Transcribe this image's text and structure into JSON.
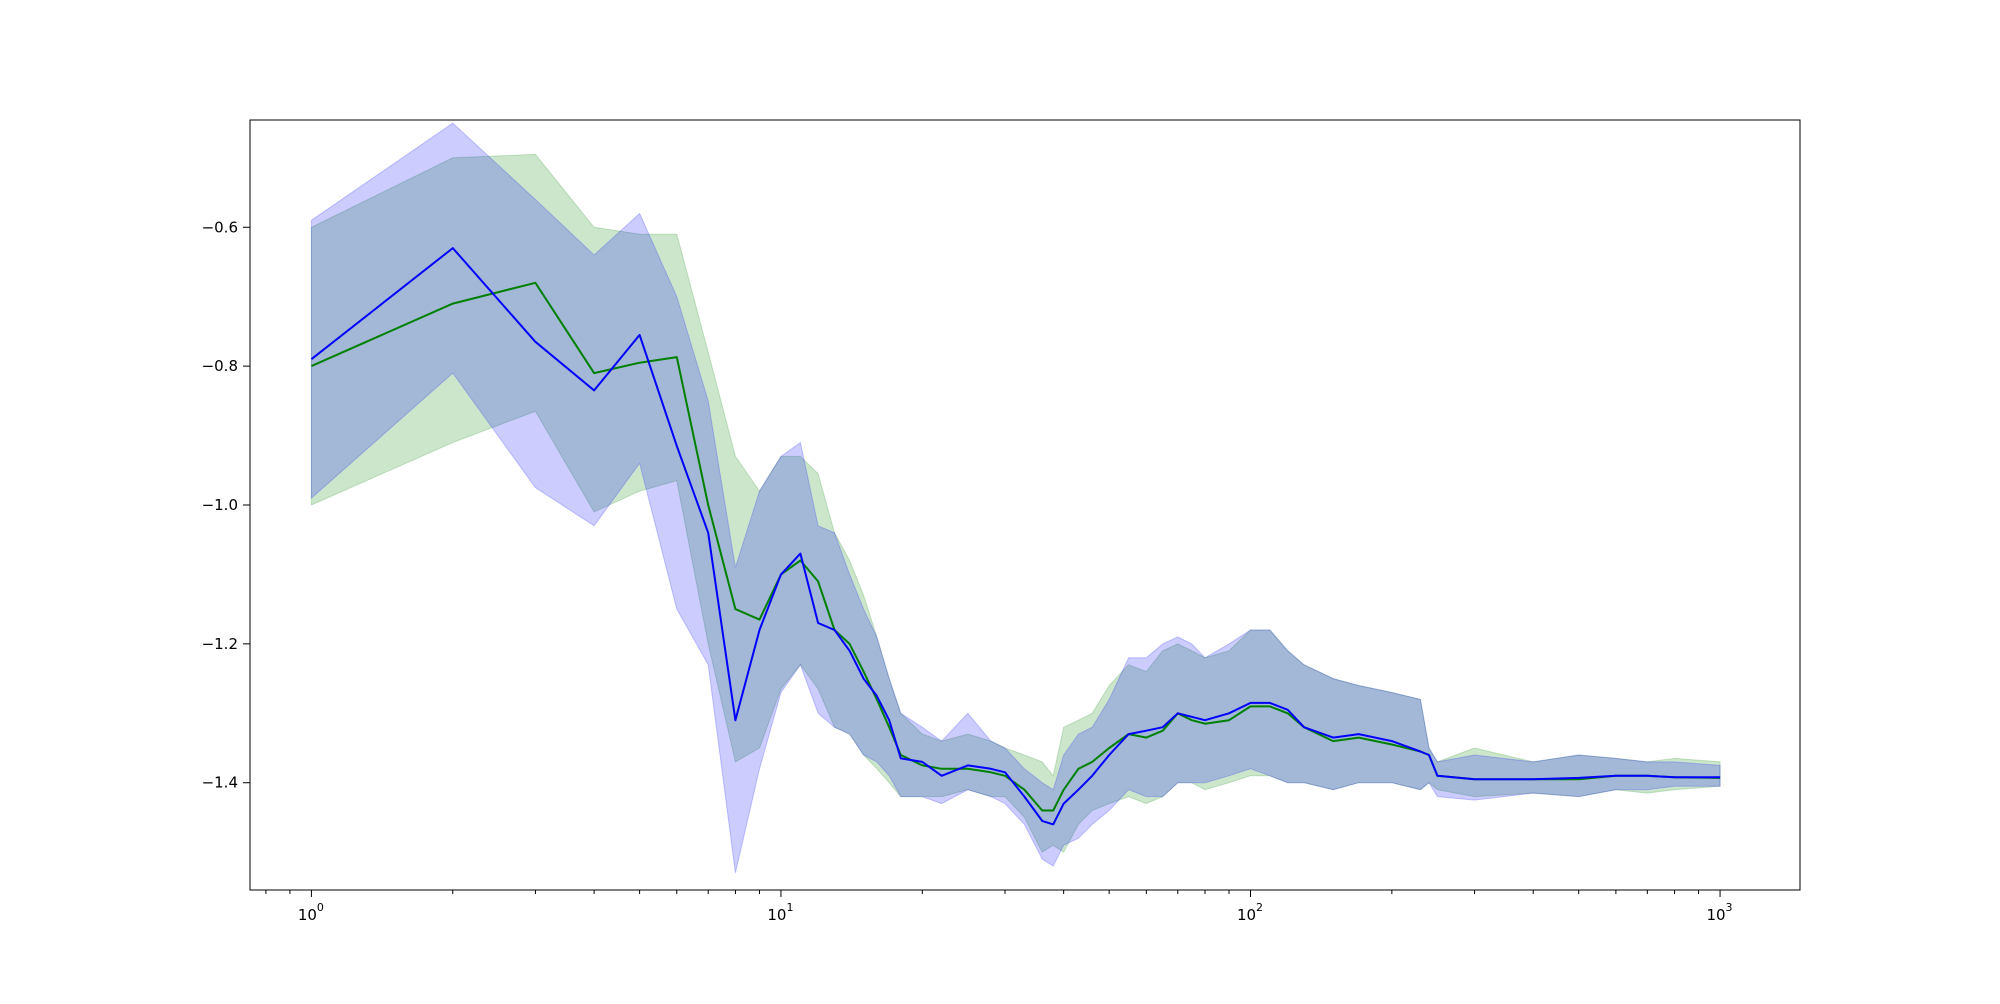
{
  "chart_data": {
    "type": "line",
    "title": "",
    "xlabel": "",
    "ylabel": "",
    "xscale": "log",
    "xlim": [
      0.74,
      1480
    ],
    "ylim": [
      -1.5545,
      -0.4455
    ],
    "grid": false,
    "legend": "none",
    "x_ticks": [
      {
        "value": 1,
        "base": "10",
        "exp": "0"
      },
      {
        "value": 10,
        "base": "10",
        "exp": "1"
      },
      {
        "value": 100,
        "base": "10",
        "exp": "2"
      },
      {
        "value": 1000,
        "base": "10",
        "exp": "3"
      }
    ],
    "y_ticks": [
      {
        "value": -0.6,
        "label": "−0.6"
      },
      {
        "value": -0.8,
        "label": "−0.8"
      },
      {
        "value": -1.0,
        "label": "−1.0"
      },
      {
        "value": -1.2,
        "label": "−1.2"
      },
      {
        "value": -1.4,
        "label": "−1.4"
      }
    ],
    "series": [
      {
        "color": "#008000",
        "band_color": "#008000",
        "band_opacity": 0.2,
        "x": [
          1,
          2,
          3,
          4,
          5,
          6,
          7,
          8,
          9,
          10,
          11,
          12,
          13,
          14,
          15,
          16,
          17,
          18,
          20,
          22,
          25,
          28,
          30,
          33,
          36,
          38,
          40,
          43,
          46,
          50,
          55,
          60,
          65,
          70,
          75,
          80,
          90,
          100,
          110,
          120,
          130,
          150,
          170,
          200,
          230,
          240,
          250,
          300,
          400,
          500,
          600,
          700,
          800,
          1000
        ],
        "y": [
          -0.8,
          -0.71,
          -0.68,
          -0.81,
          -0.795,
          -0.787,
          -1.0,
          -1.15,
          -1.165,
          -1.1,
          -1.08,
          -1.11,
          -1.18,
          -1.2,
          -1.24,
          -1.28,
          -1.32,
          -1.36,
          -1.375,
          -1.38,
          -1.38,
          -1.385,
          -1.39,
          -1.41,
          -1.44,
          -1.44,
          -1.41,
          -1.38,
          -1.37,
          -1.35,
          -1.33,
          -1.335,
          -1.325,
          -1.3,
          -1.31,
          -1.315,
          -1.31,
          -1.29,
          -1.29,
          -1.3,
          -1.32,
          -1.34,
          -1.335,
          -1.345,
          -1.355,
          -1.36,
          -1.39,
          -1.395,
          -1.395,
          -1.395,
          -1.39,
          -1.39,
          -1.392,
          -1.393
        ],
        "upper": [
          -0.6,
          -0.5,
          -0.495,
          -0.6,
          -0.61,
          -0.61,
          -0.78,
          -0.93,
          -0.98,
          -0.93,
          -0.93,
          -0.955,
          -1.04,
          -1.08,
          -1.13,
          -1.19,
          -1.25,
          -1.3,
          -1.33,
          -1.34,
          -1.33,
          -1.34,
          -1.35,
          -1.36,
          -1.37,
          -1.39,
          -1.32,
          -1.31,
          -1.3,
          -1.26,
          -1.23,
          -1.24,
          -1.21,
          -1.2,
          -1.21,
          -1.22,
          -1.21,
          -1.18,
          -1.18,
          -1.21,
          -1.23,
          -1.25,
          -1.26,
          -1.27,
          -1.28,
          -1.35,
          -1.37,
          -1.35,
          -1.37,
          -1.36,
          -1.365,
          -1.37,
          -1.365,
          -1.37
        ],
        "lower": [
          -1.0,
          -0.91,
          -0.865,
          -1.01,
          -0.98,
          -0.965,
          -1.2,
          -1.37,
          -1.35,
          -1.265,
          -1.23,
          -1.265,
          -1.32,
          -1.33,
          -1.36,
          -1.38,
          -1.4,
          -1.42,
          -1.42,
          -1.42,
          -1.41,
          -1.42,
          -1.42,
          -1.45,
          -1.5,
          -1.49,
          -1.5,
          -1.46,
          -1.44,
          -1.43,
          -1.42,
          -1.43,
          -1.42,
          -1.4,
          -1.4,
          -1.41,
          -1.4,
          -1.39,
          -1.39,
          -1.4,
          -1.4,
          -1.41,
          -1.4,
          -1.4,
          -1.41,
          -1.4,
          -1.41,
          -1.42,
          -1.415,
          -1.42,
          -1.41,
          -1.415,
          -1.41,
          -1.405
        ]
      },
      {
        "color": "#0000ff",
        "band_color": "#0000ff",
        "band_opacity": 0.2,
        "x": [
          1,
          2,
          3,
          4,
          5,
          6,
          7,
          8,
          9,
          10,
          11,
          12,
          13,
          14,
          15,
          16,
          17,
          18,
          20,
          22,
          25,
          28,
          30,
          33,
          36,
          38,
          40,
          43,
          46,
          50,
          55,
          60,
          65,
          70,
          75,
          80,
          90,
          100,
          110,
          120,
          130,
          150,
          170,
          200,
          230,
          240,
          250,
          300,
          400,
          500,
          600,
          700,
          800,
          1000
        ],
        "y": [
          -0.79,
          -0.63,
          -0.765,
          -0.835,
          -0.755,
          -0.915,
          -1.04,
          -1.31,
          -1.18,
          -1.1,
          -1.07,
          -1.17,
          -1.18,
          -1.21,
          -1.25,
          -1.275,
          -1.31,
          -1.365,
          -1.37,
          -1.39,
          -1.375,
          -1.38,
          -1.385,
          -1.42,
          -1.455,
          -1.46,
          -1.43,
          -1.41,
          -1.39,
          -1.36,
          -1.33,
          -1.325,
          -1.32,
          -1.3,
          -1.305,
          -1.31,
          -1.3,
          -1.285,
          -1.285,
          -1.295,
          -1.32,
          -1.335,
          -1.33,
          -1.34,
          -1.355,
          -1.36,
          -1.39,
          -1.395,
          -1.395,
          -1.393,
          -1.39,
          -1.39,
          -1.392,
          -1.392
        ],
        "upper": [
          -0.59,
          -0.45,
          -0.56,
          -0.64,
          -0.58,
          -0.7,
          -0.85,
          -1.09,
          -0.98,
          -0.93,
          -0.91,
          -1.03,
          -1.04,
          -1.1,
          -1.15,
          -1.19,
          -1.25,
          -1.3,
          -1.32,
          -1.34,
          -1.3,
          -1.34,
          -1.35,
          -1.38,
          -1.4,
          -1.41,
          -1.36,
          -1.33,
          -1.32,
          -1.28,
          -1.22,
          -1.22,
          -1.2,
          -1.19,
          -1.2,
          -1.22,
          -1.2,
          -1.18,
          -1.18,
          -1.21,
          -1.23,
          -1.25,
          -1.26,
          -1.27,
          -1.28,
          -1.35,
          -1.37,
          -1.36,
          -1.37,
          -1.36,
          -1.365,
          -1.37,
          -1.37,
          -1.375
        ],
        "lower": [
          -0.99,
          -0.81,
          -0.975,
          -1.03,
          -0.94,
          -1.15,
          -1.23,
          -1.53,
          -1.38,
          -1.27,
          -1.23,
          -1.3,
          -1.32,
          -1.33,
          -1.36,
          -1.37,
          -1.39,
          -1.42,
          -1.42,
          -1.43,
          -1.41,
          -1.42,
          -1.43,
          -1.46,
          -1.51,
          -1.52,
          -1.49,
          -1.48,
          -1.46,
          -1.44,
          -1.41,
          -1.42,
          -1.42,
          -1.4,
          -1.4,
          -1.4,
          -1.39,
          -1.38,
          -1.39,
          -1.4,
          -1.4,
          -1.41,
          -1.4,
          -1.4,
          -1.41,
          -1.4,
          -1.42,
          -1.425,
          -1.415,
          -1.42,
          -1.41,
          -1.41,
          -1.405,
          -1.405
        ]
      }
    ]
  }
}
